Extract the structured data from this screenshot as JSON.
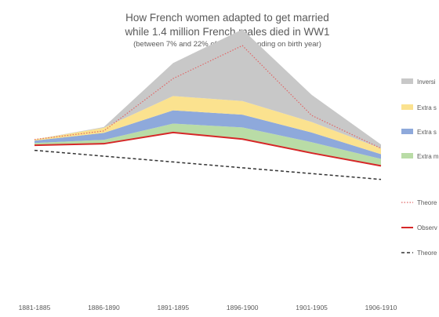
{
  "chart_data": {
    "type": "area",
    "title": "How French women adapted to get married",
    "subtitle": "while 1.4 million French males died in WW1",
    "note": "(between 7% and 22% of males depending on birth year)",
    "categories": [
      "1881-1885",
      "1886-1890",
      "1891-1895",
      "1896-1900",
      "1901-1905",
      "1906-1910"
    ],
    "ylim": [
      0,
      70
    ],
    "grid": false,
    "legend_position": "right",
    "stacked_series": [
      {
        "name": "Inversi",
        "color": "#c8c8c8",
        "values": [
          0.0,
          0.2,
          8.5,
          18.5,
          7.0,
          1.0
        ]
      },
      {
        "name": "Extra s",
        "color": "#fbe28f",
        "values": [
          0.3,
          1.3,
          3.7,
          3.5,
          2.7,
          1.5
        ]
      },
      {
        "name": "Extra s",
        "color": "#8ea9db",
        "values": [
          0.6,
          1.8,
          3.4,
          3.3,
          2.5,
          1.2
        ]
      },
      {
        "name": "Extra m",
        "color": "#b9dca6",
        "values": [
          0.6,
          1.0,
          2.3,
          3.0,
          2.8,
          1.8
        ]
      }
    ],
    "line_series": [
      {
        "name": "Theore",
        "color": "#e06666",
        "style": "dotted",
        "values": [
          39.3,
          41.5,
          55.0,
          63.5,
          45.5,
          37.0
        ]
      },
      {
        "name": "Observ",
        "color": "#d62728",
        "style": "solid",
        "values": [
          37.8,
          38.2,
          41.1,
          39.4,
          35.8,
          32.5
        ]
      },
      {
        "name": "Theore",
        "color": "#333333",
        "style": "dashed",
        "values": [
          36.5,
          35.0,
          33.5,
          32.0,
          30.5,
          29.0
        ]
      }
    ]
  }
}
